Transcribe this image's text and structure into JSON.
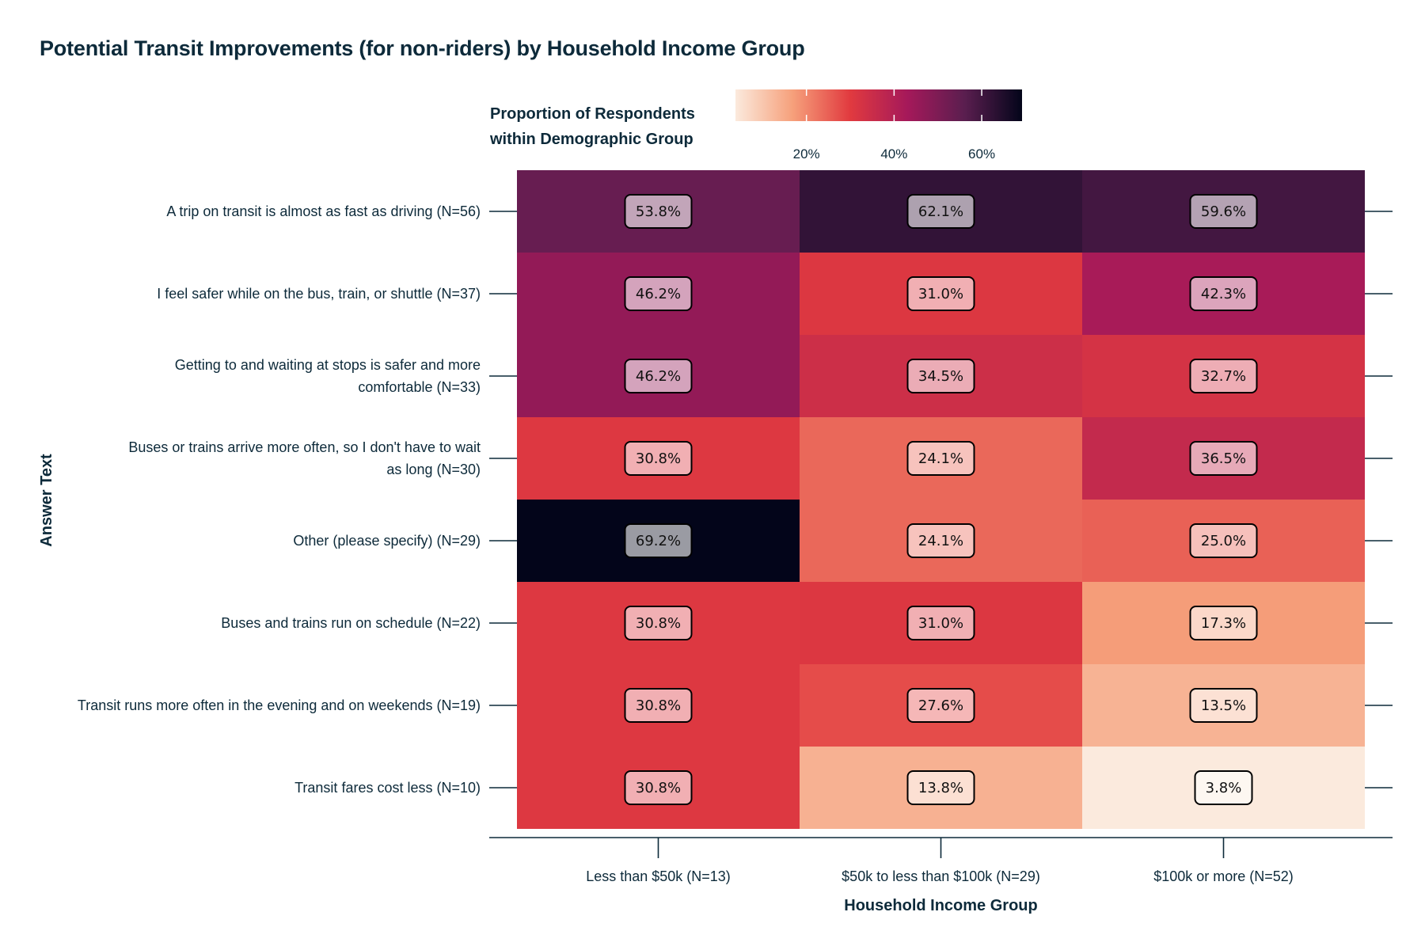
{
  "title": "Potential Transit Improvements (for non-riders) by Household Income Group",
  "chart_data": {
    "type": "heatmap",
    "title": "Potential Transit Improvements (for non-riders) by Household Income Group",
    "xlabel": "Household Income Group",
    "ylabel": "Answer Text",
    "categories": [
      "Less than $50k (N=13)",
      "$50k to less than $100k (N=29)",
      "$100k or more (N=52)"
    ],
    "rows": [
      [
        "A trip on transit is almost as fast as driving (N=56)"
      ],
      [
        "I feel safer while on the bus, train, or shuttle (N=37)"
      ],
      [
        "Getting to and waiting at stops is safer and more",
        "comfortable (N=33)"
      ],
      [
        "Buses or trains arrive more often, so I don't have to wait",
        "as long (N=30)"
      ],
      [
        "Other (please specify) (N=29)"
      ],
      [
        "Buses and trains run on schedule (N=22)"
      ],
      [
        "Transit runs more often in the evening and on weekends (N=19)"
      ],
      [
        "Transit fares cost less (N=10)"
      ]
    ],
    "values": [
      [
        53.8,
        62.1,
        59.6
      ],
      [
        46.2,
        31.0,
        42.3
      ],
      [
        46.2,
        34.5,
        32.7
      ],
      [
        30.8,
        24.1,
        36.5
      ],
      [
        69.2,
        24.1,
        25.0
      ],
      [
        30.8,
        31.0,
        17.3
      ],
      [
        30.8,
        27.6,
        13.5
      ],
      [
        30.8,
        13.8,
        3.8
      ]
    ],
    "value_labels": [
      [
        "53.8%",
        "62.1%",
        "59.6%"
      ],
      [
        "46.2%",
        "31.0%",
        "42.3%"
      ],
      [
        "46.2%",
        "34.5%",
        "32.7%"
      ],
      [
        "30.8%",
        "24.1%",
        "36.5%"
      ],
      [
        "69.2%",
        "24.1%",
        "25.0%"
      ],
      [
        "30.8%",
        "31.0%",
        "17.3%"
      ],
      [
        "30.8%",
        "27.6%",
        "13.5%"
      ],
      [
        "30.8%",
        "13.8%",
        "3.8%"
      ]
    ],
    "legend": {
      "title_lines": [
        "Proportion of Respondents",
        "within Demographic Group"
      ],
      "ticks": [
        20,
        40,
        60
      ],
      "tick_labels": [
        "20%",
        "40%",
        "60%"
      ],
      "range": [
        3.8,
        69.2
      ],
      "placement": "top"
    },
    "colors": {
      "scale": [
        "#fbeadd",
        "#f6a07b",
        "#e13a3f",
        "#a5195a",
        "#5a1e4f",
        "#03051a"
      ],
      "text": "#0d2a3a",
      "axis": "#0d2a3a"
    }
  }
}
